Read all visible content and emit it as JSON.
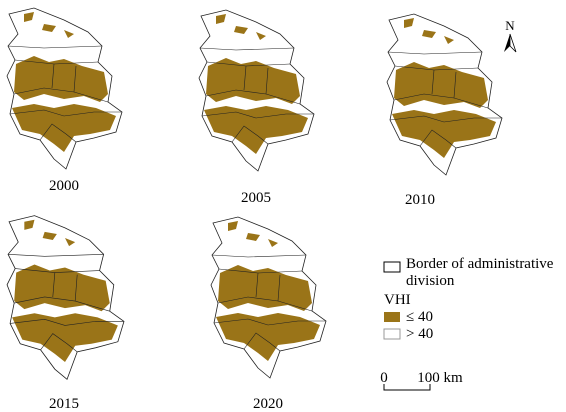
{
  "panels": [
    {
      "label": "2000"
    },
    {
      "label": "2005"
    },
    {
      "label": "2010"
    },
    {
      "label": "2015"
    },
    {
      "label": "2020"
    }
  ],
  "north": "N",
  "legend": {
    "border": [
      "Border of administrative",
      "division"
    ],
    "title": "VHI",
    "items": [
      "≤ 40",
      "> 40"
    ]
  },
  "scale": {
    "labels": [
      "0",
      "100 km"
    ]
  }
}
